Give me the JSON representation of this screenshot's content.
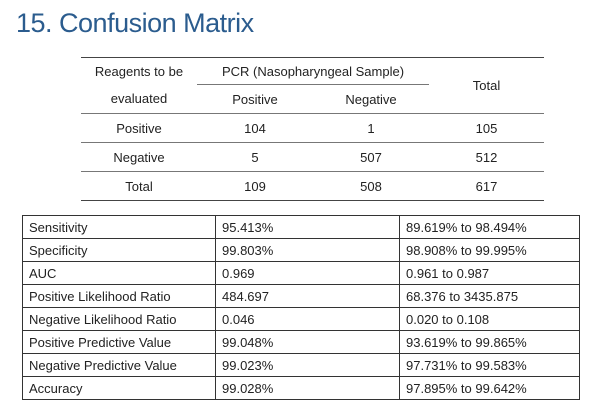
{
  "title": "15. Confusion Matrix",
  "matrix": {
    "header_left_line1": "Reagents to be",
    "header_left_line2": "evaluated",
    "header_group": "PCR (Nasopharyngeal Sample)",
    "header_positive": "Positive",
    "header_negative": "Negative",
    "header_total": "Total",
    "rows": [
      {
        "label": "Positive",
        "positive": "104",
        "negative": "1",
        "total": "105"
      },
      {
        "label": "Negative",
        "positive": "5",
        "negative": "507",
        "total": "512"
      },
      {
        "label": "Total",
        "positive": "109",
        "negative": "508",
        "total": "617"
      }
    ]
  },
  "stats": [
    {
      "metric": "Sensitivity",
      "value": "95.413%",
      "ci": "89.619% to 98.494%"
    },
    {
      "metric": "Specificity",
      "value": "99.803%",
      "ci": "98.908% to 99.995%"
    },
    {
      "metric": "AUC",
      "value": "0.969",
      "ci": "0.961 to 0.987"
    },
    {
      "metric": "Positive Likelihood Ratio",
      "value": "484.697",
      "ci": "68.376 to 3435.875"
    },
    {
      "metric": "Negative Likelihood Ratio",
      "value": "0.046",
      "ci": "0.020 to 0.108"
    },
    {
      "metric": "Positive Predictive Value",
      "value": "99.048%",
      "ci": "93.619% to 99.865%"
    },
    {
      "metric": "Negative Predictive Value",
      "value": "99.023%",
      "ci": "97.731% to 99.583%"
    },
    {
      "metric": "Accuracy",
      "value": "99.028%",
      "ci": "97.895% to 99.642%"
    }
  ]
}
